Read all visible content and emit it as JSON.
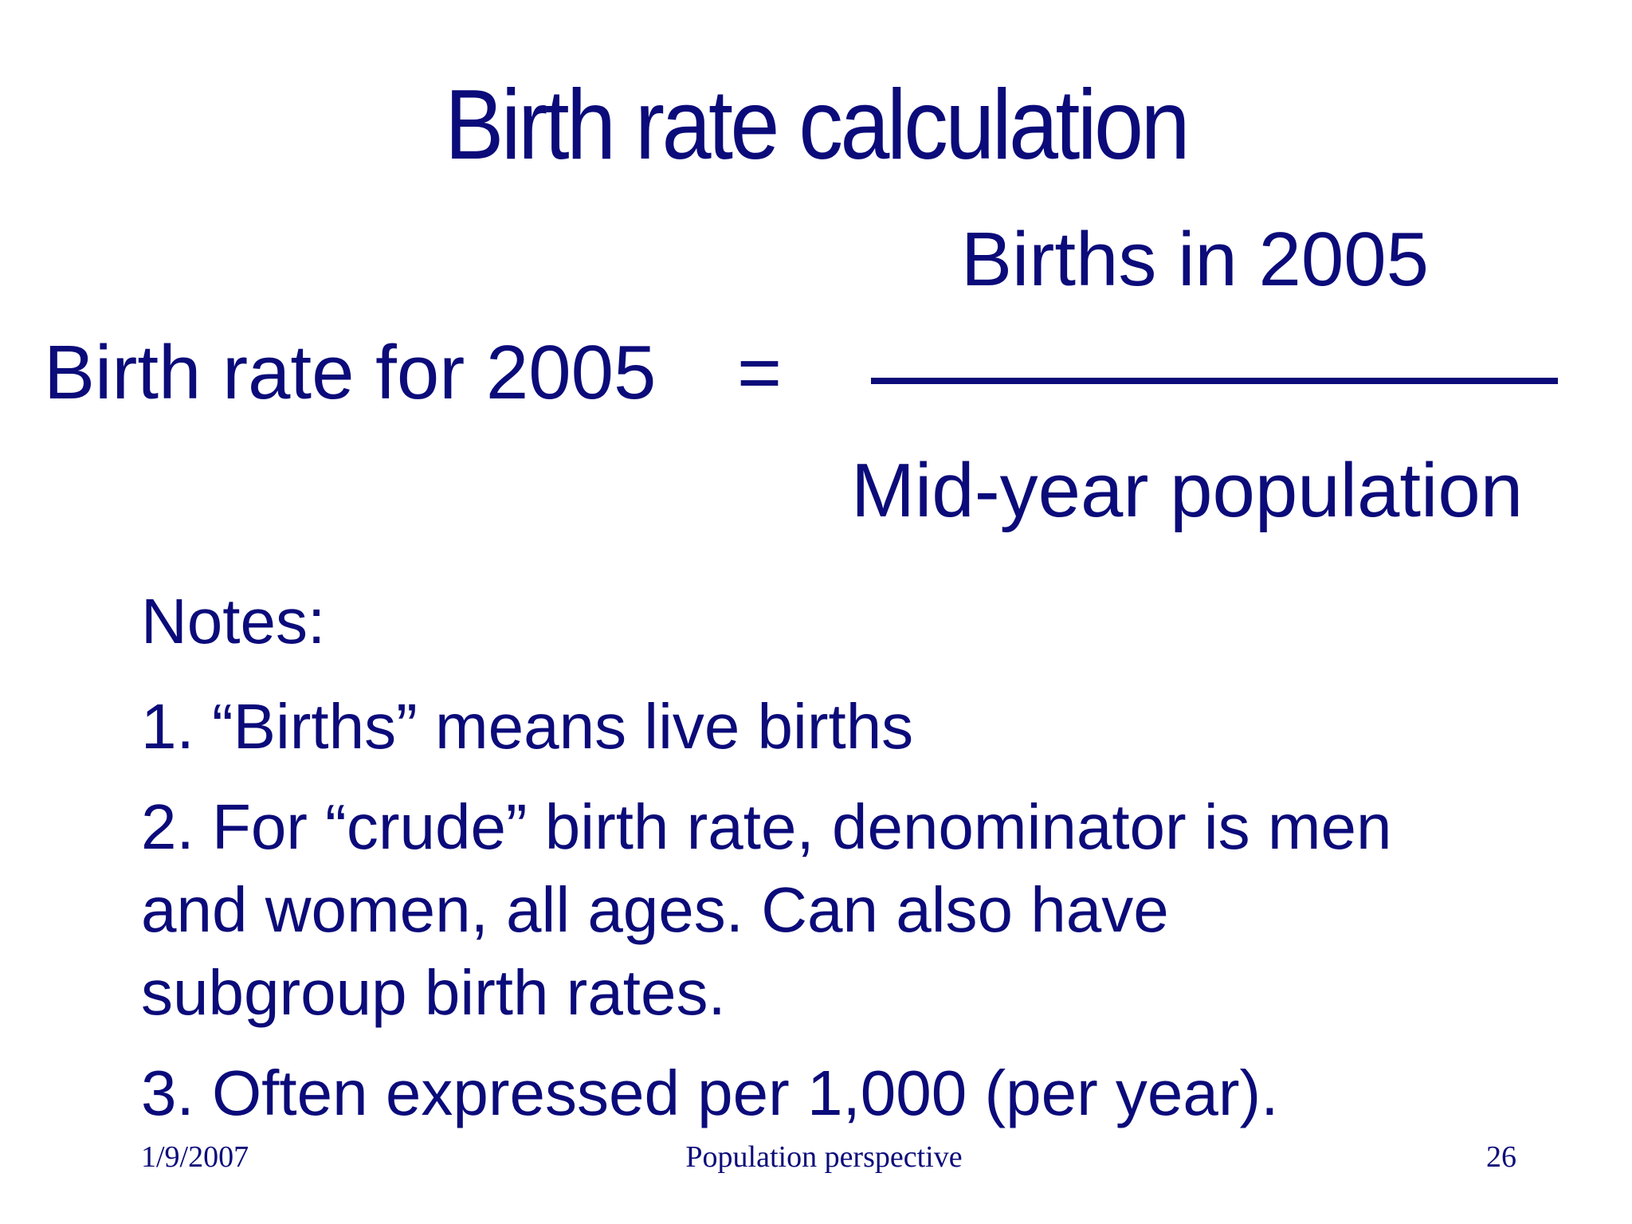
{
  "slide": {
    "title": "Birth rate calculation",
    "formula": {
      "lhs": "Birth rate for 2005",
      "equals": "=",
      "numerator": "Births in 2005",
      "denominator": "Mid-year population"
    },
    "notes": {
      "heading": "Notes:",
      "items": [
        {
          "lines": [
            "1. “Births” means live births"
          ]
        },
        {
          "lines": [
            "2. For “crude” birth rate, denominator is men",
            "and women, all ages.  Can also have",
            "subgroup birth rates."
          ]
        },
        {
          "lines": [
            "3. Often expressed per 1,000 (per year)."
          ]
        }
      ]
    },
    "footer": {
      "date": "1/9/2007",
      "center": "Population perspective",
      "page": "26"
    }
  },
  "colors": {
    "text": "#0b0b7a",
    "background": "#ffffff"
  }
}
